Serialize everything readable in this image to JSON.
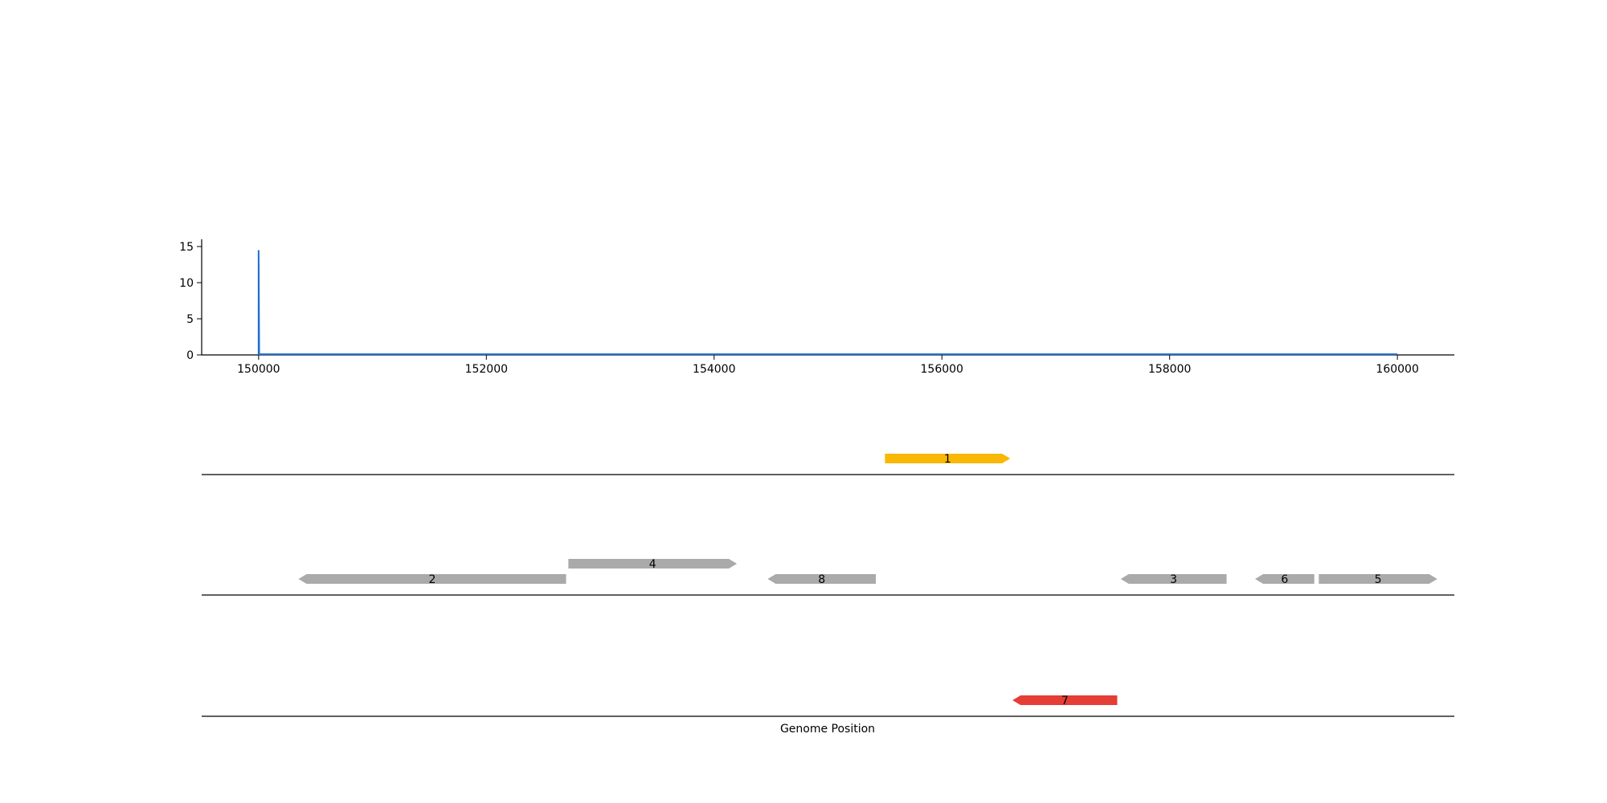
{
  "chart_data": [
    {
      "type": "line",
      "title": "",
      "xlabel": "",
      "ylabel": "",
      "xlim": [
        149500,
        160500
      ],
      "ylim": [
        0,
        16
      ],
      "x_ticks": [
        150000,
        152000,
        154000,
        156000,
        158000,
        160000
      ],
      "x_tick_labels": [
        "150000",
        "152000",
        "154000",
        "156000",
        "158000",
        "160000"
      ],
      "y_ticks": [
        0,
        5,
        10,
        15
      ],
      "y_tick_labels": [
        "0",
        "5",
        "10",
        "15"
      ],
      "series": [
        {
          "color": "#1f6fce",
          "x": [
            150000,
            150000,
            150005,
            160000
          ],
          "y": [
            0,
            14.5,
            0.1,
            0.1
          ]
        }
      ],
      "grid": false,
      "legend": "none"
    },
    {
      "type": "gene_track",
      "xlabel": "Genome Position",
      "xlim": [
        149500,
        160500
      ],
      "tracks": [
        {
          "genes": [
            {
              "label": "1",
              "start": 155500,
              "end": 156600,
              "strand": "+",
              "color": "#f9b805",
              "row": 0
            }
          ]
        },
        {
          "genes": [
            {
              "label": "2",
              "start": 150350,
              "end": 152700,
              "strand": "-",
              "color": "#aaaaaa",
              "row": 0
            },
            {
              "label": "4",
              "start": 152720,
              "end": 154200,
              "strand": "+",
              "color": "#aaaaaa",
              "row": 1
            },
            {
              "label": "8",
              "start": 154470,
              "end": 155420,
              "strand": "-",
              "color": "#aaaaaa",
              "row": 0
            },
            {
              "label": "3",
              "start": 157570,
              "end": 158500,
              "strand": "-",
              "color": "#aaaaaa",
              "row": 0
            },
            {
              "label": "6",
              "start": 158750,
              "end": 159270,
              "strand": "-",
              "color": "#aaaaaa",
              "row": 0
            },
            {
              "label": "5",
              "start": 159310,
              "end": 160350,
              "strand": "+",
              "color": "#aaaaaa",
              "row": 0
            }
          ]
        },
        {
          "genes": [
            {
              "label": "7",
              "start": 156620,
              "end": 157540,
              "strand": "-",
              "color": "#e43e36",
              "row": 0
            }
          ]
        }
      ]
    }
  ]
}
